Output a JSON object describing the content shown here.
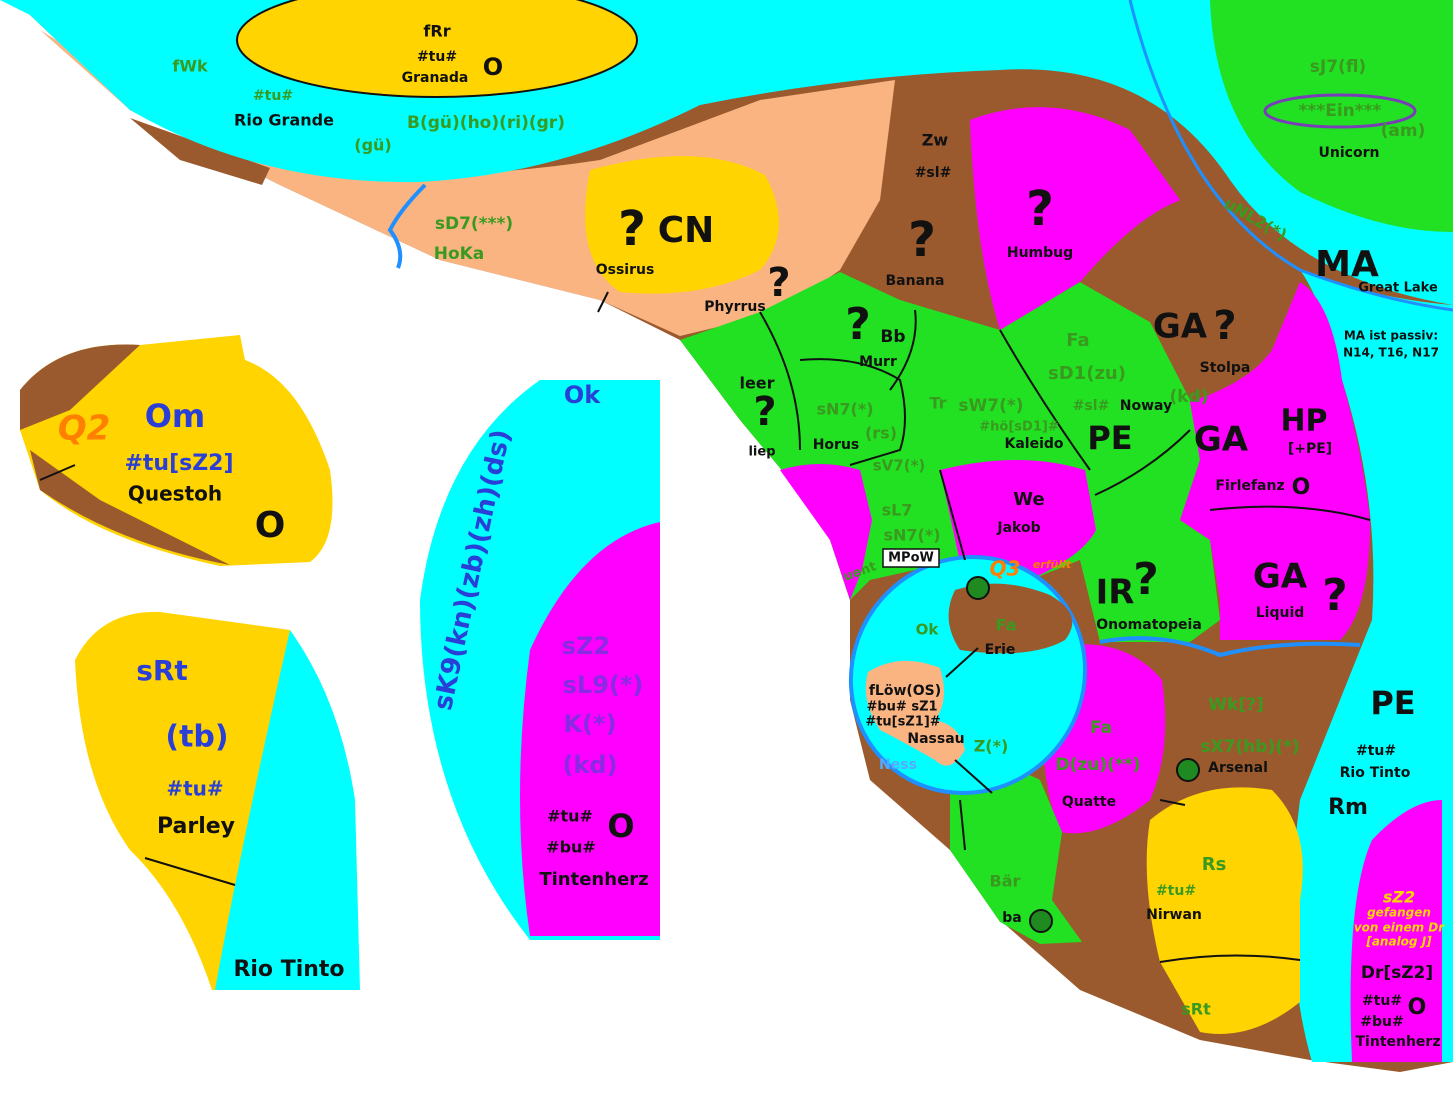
{
  "labels": [
    "fRr",
    "#tu#",
    "Granada",
    "O",
    "fWk",
    "#tu#",
    "Rio Grande",
    "B(gü)(ho)(ri)(gr)",
    "(gü)",
    "sD7(***)",
    "HoKa",
    "?",
    "CN",
    "Ossirus",
    "Phyrrus",
    "?",
    "Zw",
    "#sl#",
    "?",
    "Banana",
    "?",
    "Humbug",
    "sJ7(fl)",
    "***Ein***",
    "(am)",
    "Unicorn",
    "uNL2(*)",
    "MA",
    "Great Lake",
    "MA ist passiv:",
    "N14, T16, N17",
    "GA",
    "?",
    "Stolpa",
    "Fa",
    "sD1(zu)",
    "#sl#",
    "Noway",
    "(kd)",
    "?",
    "Bb",
    "Murr",
    "leer",
    "?",
    "liep",
    "sN7(*)",
    "(rs)",
    "Horus",
    "Tr",
    "sW7(*)",
    "#hö[sD1]#",
    "Kaleido",
    "PE",
    "GA",
    "HP",
    "[+PE]",
    "Firlefanz",
    "O",
    "sV7(*)",
    "sL7",
    "sN7(*)",
    "MPoW",
    "uent",
    "We",
    "Jakob",
    "Q3",
    "erfüllt",
    "Ok",
    "Fa",
    "Erie",
    "fLöw(OS)",
    "#bu# sZ1",
    "#tu[sZ1]#",
    "Nassau",
    "Z(*)",
    "Ness",
    "IR",
    "?",
    "Onomatopeia",
    "GA",
    "Liquid",
    "?",
    "Wk[?]",
    "sX7(hb)(*)",
    "Arsenal",
    "Fa",
    "D(zu)(**)",
    "Quatte",
    "PE",
    "#tu#",
    "Rio Tinto",
    "Rm",
    "Rs",
    "#tu#",
    "Nirwan",
    "Bär",
    "ba",
    "sRt",
    "sZ2",
    "gefangen",
    "von einem Dr",
    "[analog J]",
    "Dr[sZ2]",
    "#tu#",
    "O",
    "#bu#",
    "Tintenherz",
    "Ok",
    "sK9(kn)(zb)(zh)(ds)",
    "sZ2",
    "sL9(*)",
    "K(*)",
    "(kd)",
    "#tu#",
    "O",
    "#bu#",
    "Tintenherz",
    "Q2",
    "Om",
    "#tu[sZ2]",
    "Questoh",
    "O",
    "sRt",
    "(tb)",
    "#tu#",
    "Parley",
    "Rio Tinto"
  ]
}
